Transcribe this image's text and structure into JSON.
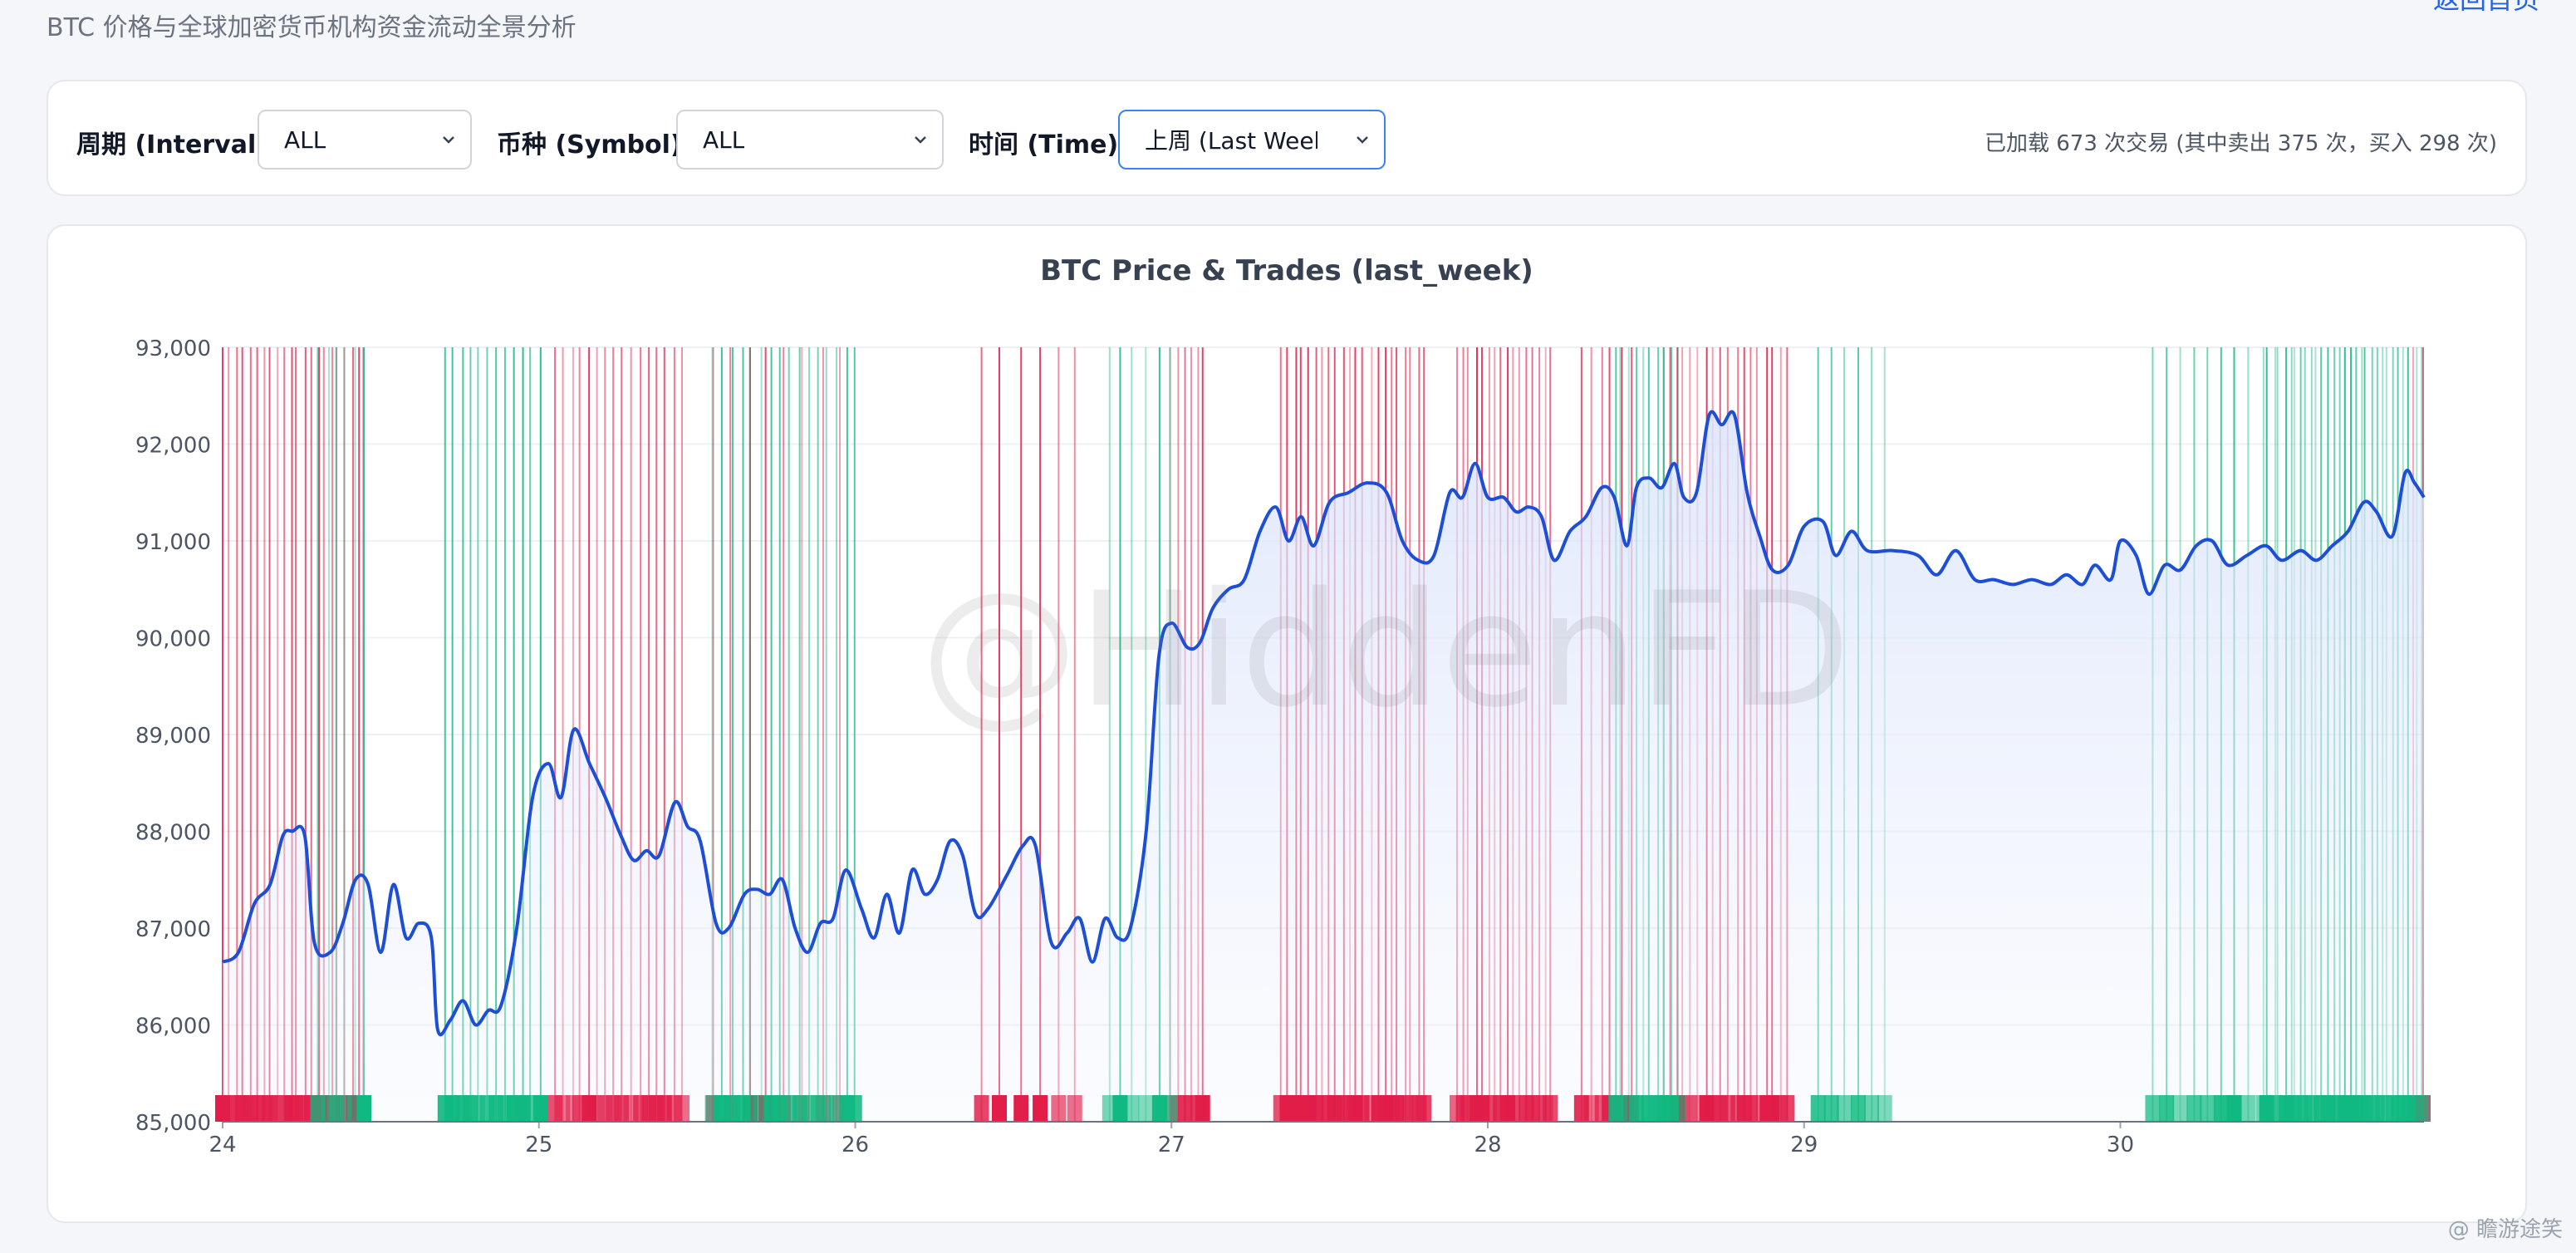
{
  "header": {
    "subtitle": "BTC 价格与全球加密货币机构资金流动全景分析",
    "back_link": "返回首页"
  },
  "filters": {
    "interval": {
      "label": "周期 (Interval):",
      "value": "ALL"
    },
    "symbol": {
      "label": "币种 (Symbol):",
      "value": "ALL"
    },
    "time": {
      "label": "时间 (Time):",
      "value": "上周 (Last Week)"
    },
    "stats": "已加载 673 次交易 (其中卖出 375 次，买入 298 次)"
  },
  "watermark": "@HiddenFD",
  "credit": "@ 瞻游途笑",
  "colors": {
    "line": "#1d4ed8",
    "sell": "#e11d48",
    "buy": "#10b981",
    "fill": "#e0e7fb"
  },
  "chart_data": {
    "type": "line",
    "title": "BTC Price & Trades (last_week)",
    "xlabel": "",
    "ylabel": "",
    "x_ticks": [
      "24",
      "25",
      "26",
      "27",
      "28",
      "29",
      "30"
    ],
    "x_range": [
      24,
      30.96
    ],
    "ylim": [
      85000,
      93000
    ],
    "y_ticks": [
      85000,
      86000,
      87000,
      88000,
      89000,
      90000,
      91000,
      92000,
      93000
    ],
    "y_tick_labels": [
      "85,000",
      "86,000",
      "87,000",
      "88,000",
      "89,000",
      "90,000",
      "91,000",
      "92,000",
      "93,000"
    ],
    "series": [
      {
        "values": [
          [
            24.0,
            86650
          ],
          [
            24.05,
            86750
          ],
          [
            24.1,
            87250
          ],
          [
            24.15,
            87450
          ],
          [
            24.19,
            87950
          ],
          [
            24.22,
            88000
          ],
          [
            24.26,
            87950
          ],
          [
            24.29,
            86850
          ],
          [
            24.34,
            86750
          ],
          [
            24.38,
            87050
          ],
          [
            24.42,
            87500
          ],
          [
            24.46,
            87450
          ],
          [
            24.5,
            86750
          ],
          [
            24.54,
            87450
          ],
          [
            24.58,
            86900
          ],
          [
            24.62,
            87050
          ],
          [
            24.66,
            86900
          ],
          [
            24.68,
            85950
          ],
          [
            24.72,
            86050
          ],
          [
            24.76,
            86250
          ],
          [
            24.8,
            86000
          ],
          [
            24.84,
            86150
          ],
          [
            24.88,
            86200
          ],
          [
            24.93,
            87000
          ],
          [
            24.98,
            88350
          ],
          [
            25.03,
            88700
          ],
          [
            25.07,
            88350
          ],
          [
            25.11,
            89050
          ],
          [
            25.16,
            88700
          ],
          [
            25.21,
            88350
          ],
          [
            25.26,
            87950
          ],
          [
            25.3,
            87700
          ],
          [
            25.34,
            87800
          ],
          [
            25.38,
            87750
          ],
          [
            25.43,
            88300
          ],
          [
            25.47,
            88050
          ],
          [
            25.51,
            87900
          ],
          [
            25.56,
            87050
          ],
          [
            25.6,
            87000
          ],
          [
            25.65,
            87350
          ],
          [
            25.69,
            87400
          ],
          [
            25.73,
            87350
          ],
          [
            25.77,
            87500
          ],
          [
            25.81,
            87000
          ],
          [
            25.85,
            86750
          ],
          [
            25.89,
            87050
          ],
          [
            25.93,
            87100
          ],
          [
            25.97,
            87600
          ],
          [
            26.02,
            87200
          ],
          [
            26.06,
            86900
          ],
          [
            26.1,
            87350
          ],
          [
            26.14,
            86950
          ],
          [
            26.18,
            87600
          ],
          [
            26.22,
            87350
          ],
          [
            26.26,
            87500
          ],
          [
            26.3,
            87900
          ],
          [
            26.34,
            87750
          ],
          [
            26.38,
            87150
          ],
          [
            26.42,
            87200
          ],
          [
            26.48,
            87550
          ],
          [
            26.53,
            87850
          ],
          [
            26.57,
            87850
          ],
          [
            26.62,
            86850
          ],
          [
            26.67,
            86950
          ],
          [
            26.71,
            87100
          ],
          [
            26.75,
            86650
          ],
          [
            26.79,
            87100
          ],
          [
            26.83,
            86900
          ],
          [
            26.87,
            87000
          ],
          [
            26.92,
            88000
          ],
          [
            26.96,
            89800
          ],
          [
            27.0,
            90150
          ],
          [
            27.05,
            89900
          ],
          [
            27.09,
            89950
          ],
          [
            27.13,
            90300
          ],
          [
            27.18,
            90500
          ],
          [
            27.23,
            90600
          ],
          [
            27.28,
            91100
          ],
          [
            27.33,
            91350
          ],
          [
            27.37,
            91000
          ],
          [
            27.41,
            91250
          ],
          [
            27.45,
            90950
          ],
          [
            27.5,
            91400
          ],
          [
            27.56,
            91500
          ],
          [
            27.62,
            91600
          ],
          [
            27.68,
            91500
          ],
          [
            27.73,
            91000
          ],
          [
            27.78,
            90800
          ],
          [
            27.83,
            90850
          ],
          [
            27.88,
            91500
          ],
          [
            27.92,
            91450
          ],
          [
            27.96,
            91800
          ],
          [
            28.0,
            91450
          ],
          [
            28.05,
            91450
          ],
          [
            28.09,
            91300
          ],
          [
            28.13,
            91350
          ],
          [
            28.17,
            91250
          ],
          [
            28.21,
            90800
          ],
          [
            28.26,
            91100
          ],
          [
            28.31,
            91250
          ],
          [
            28.36,
            91550
          ],
          [
            28.4,
            91450
          ],
          [
            28.44,
            90950
          ],
          [
            28.47,
            91550
          ],
          [
            28.51,
            91650
          ],
          [
            28.55,
            91550
          ],
          [
            28.59,
            91800
          ],
          [
            28.62,
            91450
          ],
          [
            28.66,
            91500
          ],
          [
            28.7,
            92300
          ],
          [
            28.74,
            92200
          ],
          [
            28.78,
            92300
          ],
          [
            28.82,
            91500
          ],
          [
            28.86,
            91050
          ],
          [
            28.9,
            90700
          ],
          [
            28.95,
            90750
          ],
          [
            29.0,
            91150
          ],
          [
            29.06,
            91200
          ],
          [
            29.1,
            90850
          ],
          [
            29.15,
            91100
          ],
          [
            29.2,
            90900
          ],
          [
            29.28,
            90900
          ],
          [
            29.36,
            90850
          ],
          [
            29.42,
            90650
          ],
          [
            29.48,
            90900
          ],
          [
            29.54,
            90600
          ],
          [
            29.6,
            90600
          ],
          [
            29.66,
            90550
          ],
          [
            29.72,
            90600
          ],
          [
            29.78,
            90550
          ],
          [
            29.83,
            90650
          ],
          [
            29.88,
            90550
          ],
          [
            29.92,
            90750
          ],
          [
            29.97,
            90600
          ],
          [
            30.0,
            91000
          ],
          [
            30.05,
            90850
          ],
          [
            30.09,
            90450
          ],
          [
            30.14,
            90750
          ],
          [
            30.19,
            90700
          ],
          [
            30.24,
            90950
          ],
          [
            30.29,
            91000
          ],
          [
            30.34,
            90750
          ],
          [
            30.4,
            90850
          ],
          [
            30.46,
            90950
          ],
          [
            30.51,
            90800
          ],
          [
            30.57,
            90900
          ],
          [
            30.62,
            90800
          ],
          [
            30.67,
            90950
          ],
          [
            30.72,
            91100
          ],
          [
            30.77,
            91400
          ],
          [
            30.81,
            91300
          ],
          [
            30.86,
            91050
          ],
          [
            30.9,
            91700
          ],
          [
            30.93,
            91600
          ],
          [
            30.96,
            91450
          ]
        ]
      }
    ],
    "trades": {
      "sell_total": 375,
      "buy_total": 298,
      "sell_clusters": [
        [
          24.0,
          24.45,
          22
        ],
        [
          25.05,
          25.45,
          16
        ],
        [
          25.55,
          25.95,
          8
        ],
        [
          26.4,
          26.7,
          6
        ],
        [
          27.0,
          27.1,
          6
        ],
        [
          27.35,
          27.8,
          22
        ],
        [
          27.9,
          28.2,
          16
        ],
        [
          28.3,
          28.45,
          6
        ],
        [
          28.55,
          28.95,
          18
        ],
        [
          30.93,
          30.96,
          2
        ]
      ],
      "buy_clusters": [
        [
          24.3,
          24.45,
          6
        ],
        [
          24.7,
          25.0,
          12
        ],
        [
          25.55,
          26.0,
          16
        ],
        [
          26.8,
          27.0,
          6
        ],
        [
          28.4,
          28.6,
          10
        ],
        [
          29.05,
          29.25,
          6
        ],
        [
          30.1,
          30.4,
          8
        ],
        [
          30.45,
          30.95,
          30
        ]
      ]
    }
  }
}
